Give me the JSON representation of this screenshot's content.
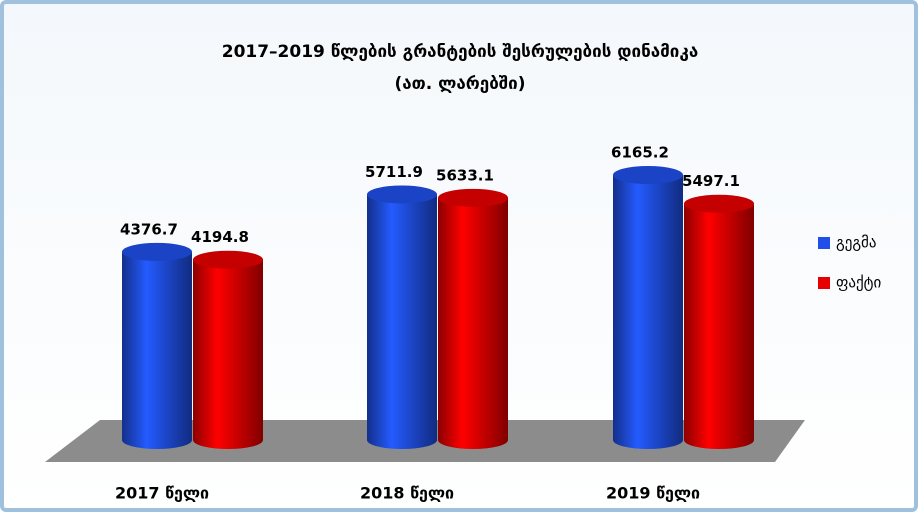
{
  "chart_data": {
    "type": "bar3d",
    "title": "2017–2019 წლების გრანტების შესრულების დინამიკა",
    "subtitle": "(ათ. ლარებში)",
    "categories": [
      "2017 წელი",
      "2018 წელი",
      "2019 წელი"
    ],
    "series": [
      {
        "name": "გეგმა",
        "color": "#1f4fe8",
        "values": [
          4376.7,
          5711.9,
          6165.2
        ]
      },
      {
        "name": "ფაქტი",
        "color": "#e80000",
        "values": [
          4194.8,
          5633.1,
          5497.1
        ]
      }
    ],
    "legend": "right"
  }
}
